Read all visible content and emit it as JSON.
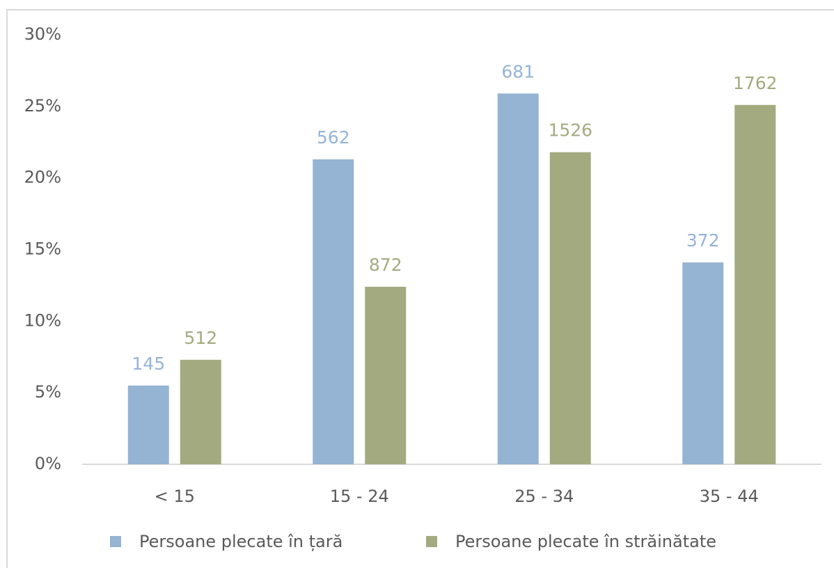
{
  "chart_data": {
    "type": "bar",
    "categories": [
      "< 15",
      "15 - 24",
      "25 - 34",
      "35 - 44"
    ],
    "series": [
      {
        "name": "Persoane plecate în țară",
        "color": "#95b3d3",
        "values": [
          5.5,
          21.3,
          25.9,
          14.1
        ],
        "data_labels": [
          145,
          562,
          681,
          372
        ]
      },
      {
        "name": "Persoane plecate în străinătate",
        "color": "#a4aa7f",
        "values": [
          7.3,
          12.4,
          21.8,
          25.1
        ],
        "data_labels": [
          512,
          872,
          1526,
          1762
        ]
      }
    ],
    "ylim": [
      0,
      30
    ],
    "yticks": [
      {
        "value": 0,
        "label": "0%"
      },
      {
        "value": 5,
        "label": "5%"
      },
      {
        "value": 10,
        "label": "10%"
      },
      {
        "value": 15,
        "label": "15%"
      },
      {
        "value": 20,
        "label": "20%"
      },
      {
        "value": 25,
        "label": "25%"
      },
      {
        "value": 30,
        "label": "30%"
      }
    ],
    "grid": false,
    "legend": "bottom"
  }
}
